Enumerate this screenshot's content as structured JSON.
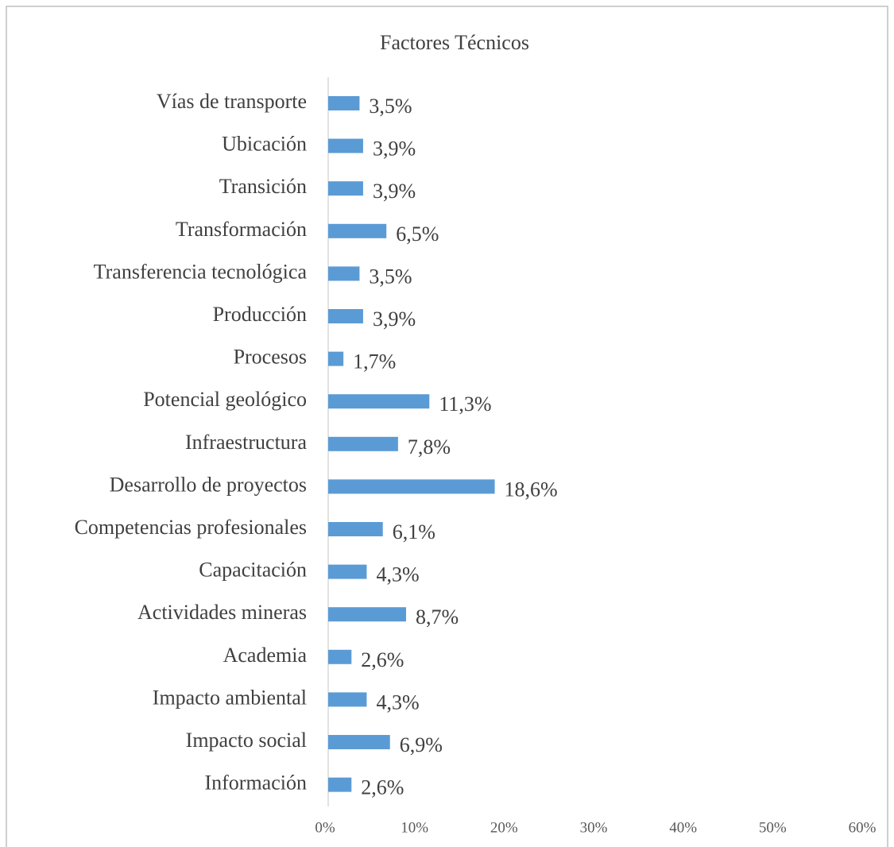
{
  "chart_data": {
    "type": "bar",
    "orientation": "horizontal",
    "title": "Factores Técnicos",
    "categories": [
      "Vías de transporte",
      "Ubicación",
      "Transición",
      "Transformación",
      "Transferencia tecnológica",
      "Producción",
      "Procesos",
      "Potencial geológico",
      "Infraestructura",
      "Desarrollo de proyectos",
      "Competencias profesionales",
      "Capacitación",
      "Actividades mineras",
      "Academia",
      "Impacto ambiental",
      "Impacto social",
      "Información"
    ],
    "values": [
      3.5,
      3.9,
      3.9,
      6.5,
      3.5,
      3.9,
      1.7,
      11.3,
      7.8,
      18.6,
      6.1,
      4.3,
      8.7,
      2.6,
      4.3,
      6.9,
      2.6
    ],
    "value_labels": [
      "3,5%",
      "3,9%",
      "3,9%",
      "6,5%",
      "3,5%",
      "3,9%",
      "1,7%",
      "11,3%",
      "7,8%",
      "18,6%",
      "6,1%",
      "4,3%",
      "8,7%",
      "2,6%",
      "4,3%",
      "6,9%",
      "2,6%"
    ],
    "color": "#5b9bd5",
    "xlim": [
      0,
      60
    ],
    "xticks": [
      {
        "value": 0,
        "label": "0%"
      },
      {
        "value": 10,
        "label": "10%"
      },
      {
        "value": 20,
        "label": "20%"
      },
      {
        "value": 30,
        "label": "30%"
      },
      {
        "value": 40,
        "label": "40%"
      },
      {
        "value": 50,
        "label": "50%"
      },
      {
        "value": 60,
        "label": "60%"
      }
    ],
    "grid": false
  }
}
